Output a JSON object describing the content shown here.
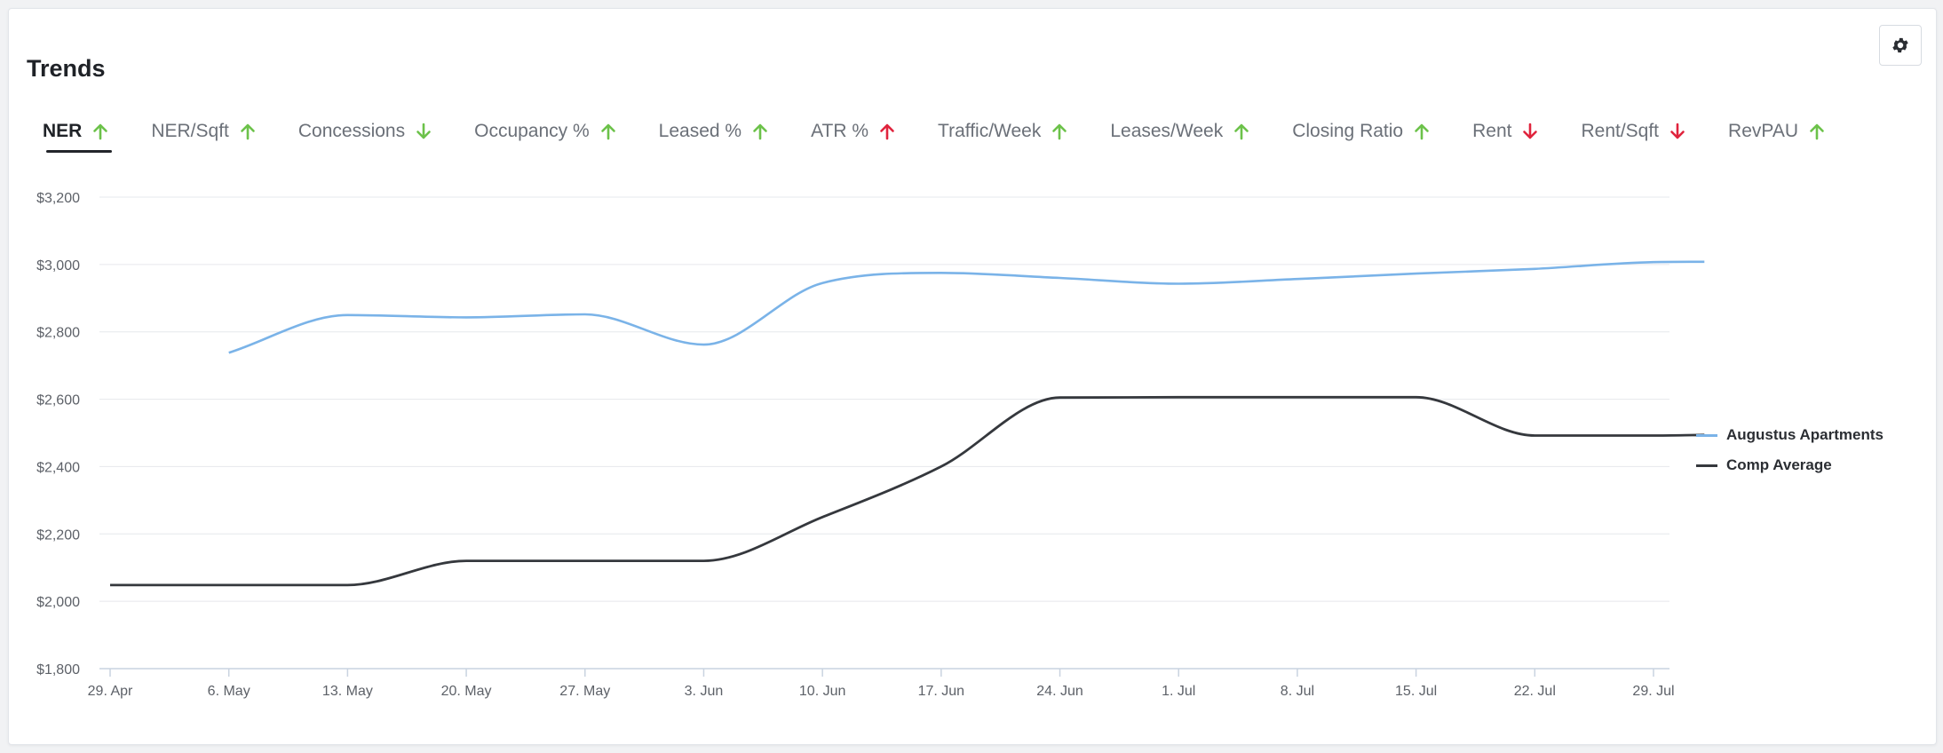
{
  "header": {
    "title": "Trends"
  },
  "icons": {
    "settings": "gear-icon"
  },
  "colors": {
    "up": "#6cc24a",
    "down": "#e0243d",
    "series_a": "#7ab3e8",
    "series_b": "#35383d"
  },
  "tabs": [
    {
      "label": "NER",
      "trend": "up",
      "active": true
    },
    {
      "label": "NER/Sqft",
      "trend": "up"
    },
    {
      "label": "Concessions",
      "trend": "down-green"
    },
    {
      "label": "Occupancy %",
      "trend": "up"
    },
    {
      "label": "Leased %",
      "trend": "up"
    },
    {
      "label": "ATR %",
      "trend": "up-red"
    },
    {
      "label": "Traffic/Week",
      "trend": "up"
    },
    {
      "label": "Leases/Week",
      "trend": "up"
    },
    {
      "label": "Closing Ratio",
      "trend": "up"
    },
    {
      "label": "Rent",
      "trend": "down"
    },
    {
      "label": "Rent/Sqft",
      "trend": "down"
    },
    {
      "label": "RevPAU",
      "trend": "up"
    }
  ],
  "chart_data": {
    "type": "line",
    "title": "NER",
    "x": [
      "29. Apr",
      "6. May",
      "13. May",
      "20. May",
      "27. May",
      "3. Jun",
      "10. Jun",
      "17. Jun",
      "24. Jun",
      "1. Jul",
      "8. Jul",
      "15. Jul",
      "22. Jul",
      "29. Jul",
      "2. Aug"
    ],
    "xticks": [
      "29. Apr",
      "6. May",
      "13. May",
      "20. May",
      "27. May",
      "3. Jun",
      "10. Jun",
      "17. Jun",
      "24. Jun",
      "1. Jul",
      "8. Jul",
      "15. Jul",
      "22. Jul",
      "29. Jul"
    ],
    "x_days": [
      0,
      7,
      14,
      21,
      28,
      35,
      42,
      49,
      56,
      63,
      70,
      77,
      84,
      91,
      94
    ],
    "ylim": [
      1800,
      3200
    ],
    "yticks": [
      1800,
      2000,
      2200,
      2400,
      2600,
      2800,
      3000,
      3200
    ],
    "ytick_labels": [
      "$1,800",
      "$2,000",
      "$2,200",
      "$2,400",
      "$2,600",
      "$2,800",
      "$3,000",
      "$3,200"
    ],
    "series": [
      {
        "name": "Augustus Apartments",
        "values": [
          null,
          2738,
          2850,
          2843,
          2852,
          2762,
          2945,
          2975,
          2960,
          2943,
          2957,
          2973,
          2987,
          3007,
          3008
        ]
      },
      {
        "name": "Comp Average",
        "values": [
          2048,
          2048,
          2048,
          2120,
          2120,
          2120,
          2250,
          2400,
          2605,
          2606,
          2606,
          2606,
          2492,
          2492,
          2494
        ]
      }
    ],
    "grid": true,
    "legend": "right"
  }
}
